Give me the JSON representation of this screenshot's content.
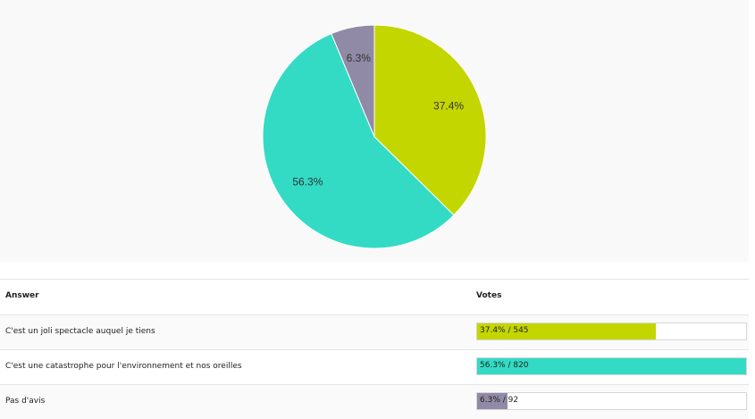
{
  "chart_data": {
    "type": "pie",
    "slices": [
      {
        "label": "C'est un joli spectacle auquel je tiens",
        "percent": 37.4,
        "votes": 545,
        "percent_label": "37.4%",
        "color": "#c4d600"
      },
      {
        "label": "C'est une catastrophe pour l'environnement et nos oreilles",
        "percent": 56.3,
        "votes": 820,
        "percent_label": "56.3%",
        "color": "#33dbc5"
      },
      {
        "label": "Pas d'avis",
        "percent": 6.3,
        "votes": 92,
        "percent_label": "6.3%",
        "color": "#908aa6"
      }
    ]
  },
  "table": {
    "header_answer": "Answer",
    "header_votes": "Votes",
    "rows": [
      {
        "answer": "C'est un joli spectacle auquel je tiens",
        "votes_text": "37.4% / 545",
        "fraction": 0.666,
        "color": "#c4d600"
      },
      {
        "answer": "C'est une catastrophe pour l'environnement et nos oreilles",
        "votes_text": "56.3% / 820",
        "fraction": 1.0,
        "color": "#33dbc5"
      },
      {
        "answer": "Pas d'avis",
        "votes_text": "6.3% / 92",
        "fraction": 0.112,
        "color": "#908aa6"
      }
    ]
  }
}
